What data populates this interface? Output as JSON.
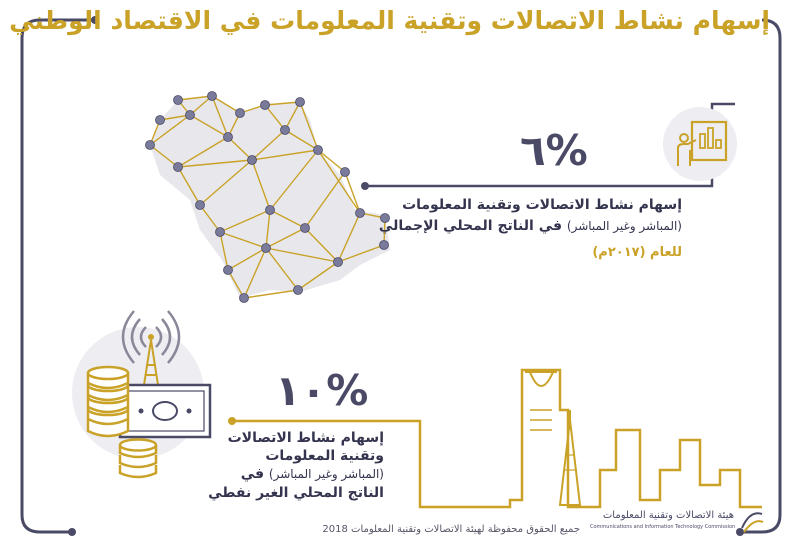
{
  "title": "إسهام نشاط الاتصالات وتقنية المعلومات في الاقتصاد الوطني",
  "stat1": {
    "percent": "٦%",
    "line1": "إسهام نشاط الاتصالات وتقنية المعلومات",
    "line2_small": "(المباشر وغير المباشر)",
    "line2_bold": "في الناتج المحلي الإجمالي",
    "year": "للعام (٢٠١٧م)"
  },
  "stat2": {
    "percent": "١٠%",
    "line1": "إسهام نشاط الاتصالات",
    "line2": "وتقنية المعلومات",
    "line3_small": "(المباشر وغير المباشر)",
    "line3_bold": "في",
    "line4": "الناتج المحلي الغير نفطي"
  },
  "footer": "جميع الحقوق محفوظة لهيئة الاتصالات وتقنية المعلومات 2018",
  "logo": {
    "arabic": "هيئة الاتصالات وتقنية المعلومات",
    "english": "Communications and Information Technology Commission"
  },
  "colors": {
    "gold": "#c9a227",
    "navy": "#4a4a67",
    "text": "#34344f"
  }
}
